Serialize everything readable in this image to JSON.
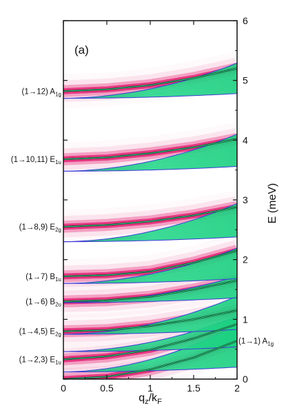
{
  "chart_data": {
    "type": "line",
    "panel_label": "(a)",
    "xlabel": {
      "main": "q",
      "sub1": "z",
      "mid": "/k",
      "sub2": "F"
    },
    "ylabel": "E (meV)",
    "xlim": [
      0,
      2
    ],
    "ylim": [
      0,
      6
    ],
    "x_ticks": [
      0,
      0.5,
      1,
      1.5,
      2
    ],
    "x_tick_labels": [
      "0",
      "0.5",
      "1",
      "1.5",
      "2"
    ],
    "y_ticks": [
      0,
      1,
      2,
      3,
      4,
      5,
      6
    ],
    "y_tick_labels": [
      "0",
      "1",
      "2",
      "3",
      "4",
      "5",
      "6"
    ],
    "y_axis_side": "right",
    "colors": {
      "continuum": "#1ee08a",
      "spectral": "#e8237a",
      "collective": "#0a3a20",
      "edge": "#3b3bd6"
    },
    "modes": [
      {
        "label_main": "(1→1) A",
        "label_sub": "1g",
        "side": "right",
        "x": [
          0,
          0.5,
          1,
          1.5,
          2
        ],
        "y": [
          0.0,
          0.04,
          0.16,
          0.36,
          0.64
        ]
      },
      {
        "label_main": "(1→2,3) E",
        "label_sub": "1u",
        "side": "left",
        "x": [
          0,
          0.5,
          1,
          1.5,
          2
        ],
        "y": [
          0.33,
          0.38,
          0.49,
          0.68,
          0.92
        ]
      },
      {
        "label_main": "(1→4,5) E",
        "label_sub": "2g",
        "side": "left",
        "x": [
          0,
          0.5,
          1,
          1.5,
          2
        ],
        "y": [
          0.8,
          0.82,
          0.89,
          1.0,
          1.15
        ]
      },
      {
        "label_main": "(1→6) B",
        "label_sub": "2u",
        "side": "left",
        "x": [
          0,
          0.5,
          1,
          1.5,
          2
        ],
        "y": [
          1.3,
          1.32,
          1.38,
          1.5,
          1.65
        ]
      },
      {
        "label_main": "(1→7) B",
        "label_sub": "1u",
        "side": "left",
        "x": [
          0,
          0.5,
          1,
          1.5,
          2
        ],
        "y": [
          1.72,
          1.74,
          1.8,
          1.95,
          2.15
        ]
      },
      {
        "label_main": "(1→8,9) E",
        "label_sub": "2g",
        "side": "left",
        "x": [
          0,
          0.5,
          1,
          1.5,
          2
        ],
        "y": [
          2.55,
          2.58,
          2.64,
          2.74,
          2.88
        ]
      },
      {
        "label_main": "(1→10,11) E",
        "label_sub": "1u",
        "side": "left",
        "x": [
          0,
          0.5,
          1,
          1.5,
          2
        ],
        "y": [
          3.68,
          3.71,
          3.78,
          3.88,
          4.02
        ]
      },
      {
        "label_main": "(1→12) A",
        "label_sub": "1g",
        "side": "left",
        "x": [
          0,
          0.5,
          1,
          1.5,
          2
        ],
        "y": [
          4.82,
          4.85,
          4.92,
          5.04,
          5.2
        ]
      }
    ],
    "continua": [
      {
        "base": 0.12,
        "top_extra": 0.75
      },
      {
        "base": 0.46,
        "top_extra": 0.55
      },
      {
        "base": 0.75,
        "top_extra": 0.6
      },
      {
        "base": 1.28,
        "top_extra": 0.4
      },
      {
        "base": 1.6,
        "top_extra": 0.55
      },
      {
        "base": 2.3,
        "top_extra": 0.6
      },
      {
        "base": 3.48,
        "top_extra": 0.58
      },
      {
        "base": 4.7,
        "top_extra": 0.55
      }
    ]
  }
}
